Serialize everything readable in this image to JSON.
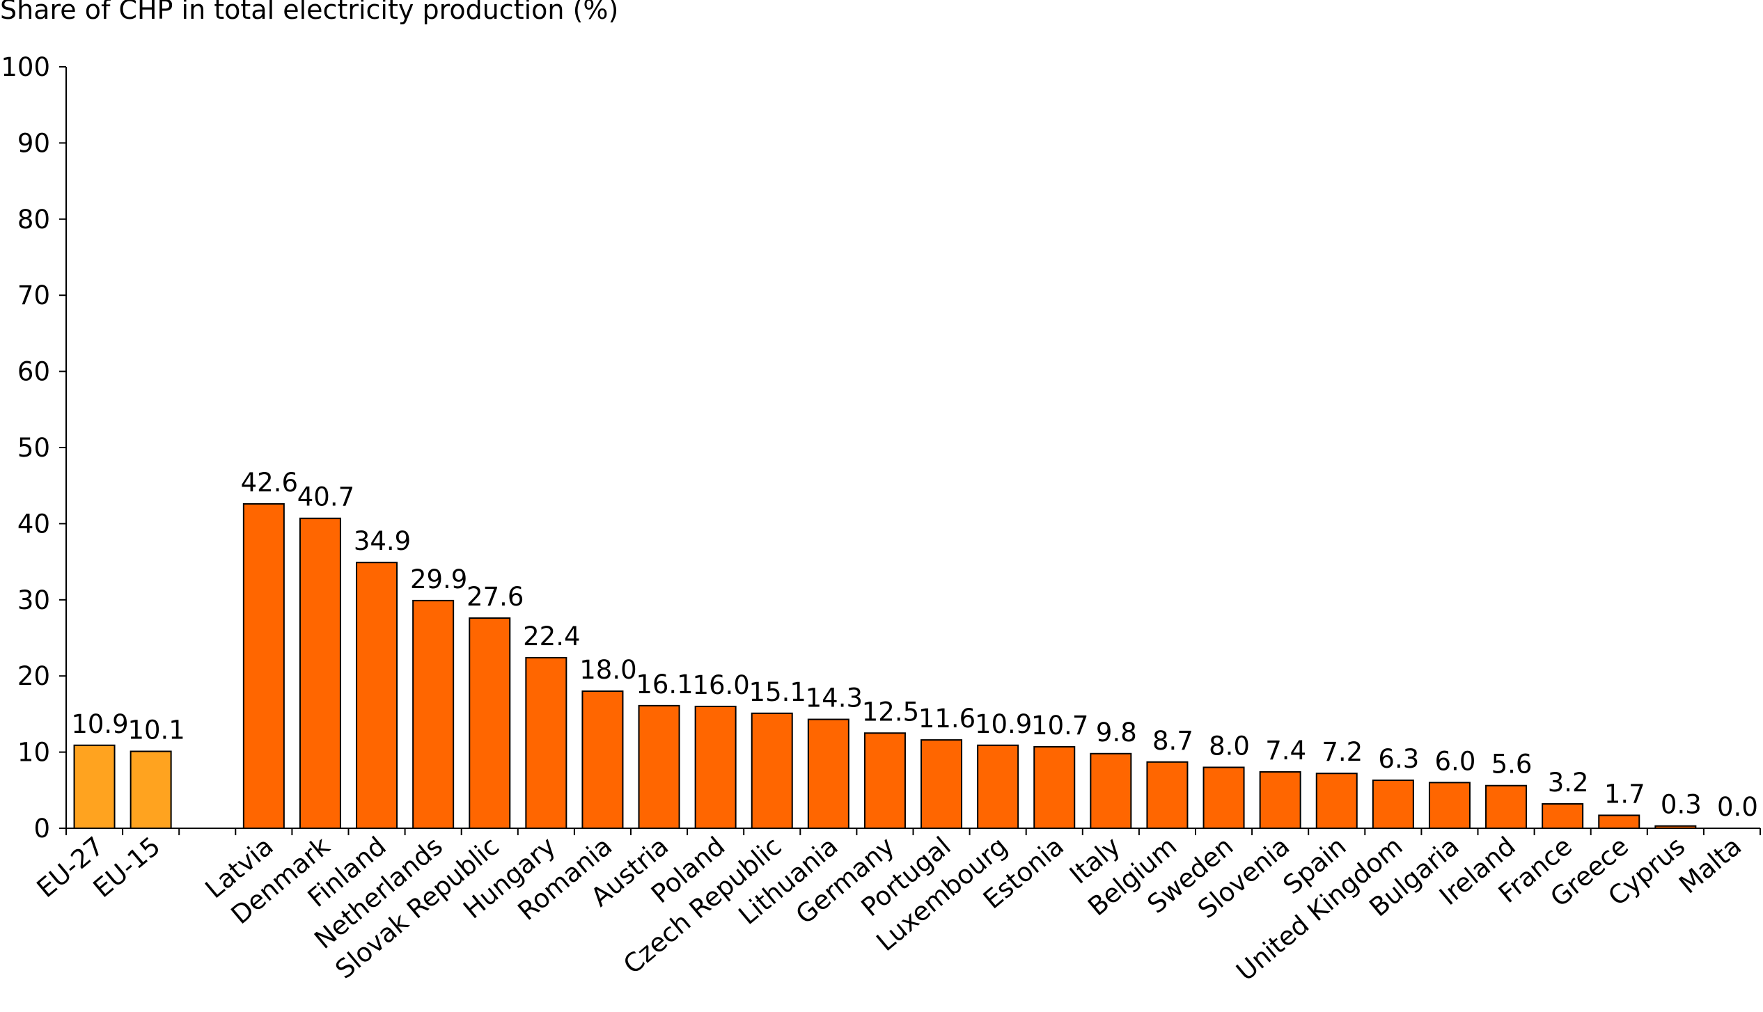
{
  "chart_data": {
    "type": "bar",
    "title": "Share of CHP in total electricity production (%)",
    "xlabel": "",
    "ylabel": "",
    "ylim": [
      0,
      100
    ],
    "yticks": [
      0,
      10,
      20,
      30,
      40,
      50,
      60,
      70,
      80,
      90,
      100
    ],
    "grid": false,
    "legend": "none",
    "colors": {
      "aggregate": "#FFA31F",
      "country": "#FF6600",
      "outline": "#000000"
    },
    "categories": [
      "EU-27",
      "EU-15",
      "",
      "Latvia",
      "Denmark",
      "Finland",
      "Netherlands",
      "Slovak Republic",
      "Hungary",
      "Romania",
      "Austria",
      "Poland",
      "Czech Republic",
      "Lithuania",
      "Germany",
      "Portugal",
      "Luxembourg",
      "Estonia",
      "Italy",
      "Belgium",
      "Sweden",
      "Slovenia",
      "Spain",
      "United Kingdom",
      "Bulgaria",
      "Ireland",
      "France",
      "Greece",
      "Cyprus",
      "Malta"
    ],
    "values": [
      10.9,
      10.1,
      null,
      42.6,
      40.7,
      34.9,
      29.9,
      27.6,
      22.4,
      18.0,
      16.1,
      16.0,
      15.1,
      14.3,
      12.5,
      11.6,
      10.9,
      10.7,
      9.8,
      8.7,
      8.0,
      7.4,
      7.2,
      6.3,
      6.0,
      5.6,
      3.2,
      1.7,
      0.3,
      0.0
    ],
    "value_labels": [
      "10.9",
      "10.1",
      "",
      "42.6",
      "40.7",
      "34.9",
      "29.9",
      "27.6",
      "22.4",
      "18.0",
      "16.1",
      "16.0",
      "15.1",
      "14.3",
      "12.5",
      "11.6",
      "10.9",
      "10.7",
      "9.8",
      "8.7",
      "8.0",
      "7.4",
      "7.2",
      "6.3",
      "6.0",
      "5.6",
      "3.2",
      "1.7",
      "0.3",
      "0.0"
    ],
    "aggregate_categories": [
      "EU-27",
      "EU-15"
    ]
  }
}
